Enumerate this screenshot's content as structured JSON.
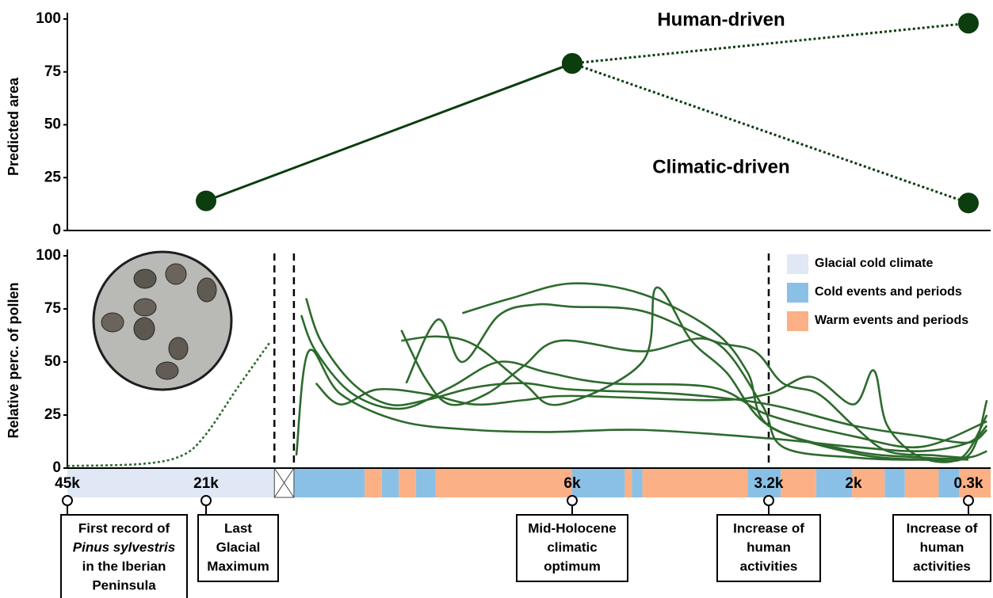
{
  "chart_data": [
    {
      "type": "line",
      "ylabel": "Predicted area",
      "ylim": [
        0,
        100
      ],
      "yticks": [
        0,
        25,
        50,
        75,
        100
      ],
      "series": [
        {
          "color": "#0b3d0e",
          "style": "solid",
          "x": [
            21,
            6
          ],
          "values": [
            14,
            79
          ]
        },
        {
          "name": "Human-driven",
          "color": "#0b3d0e",
          "style": "dotted",
          "x": [
            6,
            0.3
          ],
          "values": [
            79,
            98
          ]
        },
        {
          "name": "Climatic-driven",
          "color": "#0b3d0e",
          "style": "dotted",
          "x": [
            6,
            0.3
          ],
          "values": [
            79,
            13
          ]
        }
      ]
    },
    {
      "type": "line",
      "ylabel": "Relative perc. of pollen",
      "ylim": [
        0,
        100
      ],
      "yticks": [
        0,
        25,
        50,
        75,
        100
      ],
      "xlim": [
        45,
        0
      ],
      "xticks": [
        {
          "value": 45,
          "label": "45k"
        },
        {
          "value": 21,
          "label": "21k"
        },
        {
          "value": 6,
          "label": "6k"
        },
        {
          "value": 3.2,
          "label": "3.2k"
        },
        {
          "value": 2,
          "label": "2k"
        },
        {
          "value": 0.3,
          "label": "0.3k"
        }
      ],
      "vlines": [
        18.2,
        17.4,
        3.2
      ],
      "bands": [
        {
          "name": "Glacial cold climate",
          "color": "#dfe8f4",
          "spans": [
            [
              45,
              18.2
            ]
          ]
        },
        {
          "name": "Cold events and periods",
          "color": "#8ac0e6",
          "spans": [
            [
              17.4,
              14.5
            ],
            [
              13.8,
              13.1
            ],
            [
              12.4,
              11.6
            ],
            [
              6,
              5.25
            ],
            [
              5.15,
              5.0
            ],
            [
              3.5,
              3.03
            ],
            [
              2.53,
              2.02
            ],
            [
              1.54,
              1.24
            ],
            [
              0.74,
              0.44
            ]
          ]
        },
        {
          "name": "Warm events and periods",
          "color": "#fbb085",
          "spans": [
            [
              14.5,
              13.8
            ],
            [
              13.1,
              12.4
            ],
            [
              11.6,
              6
            ],
            [
              5.25,
              5.15
            ],
            [
              5.0,
              3.5
            ],
            [
              3.03,
              2.53
            ],
            [
              2.02,
              1.54
            ],
            [
              1.24,
              0.74
            ],
            [
              0.44,
              0
            ]
          ]
        }
      ],
      "series": [
        {
          "color": "#2d6a2d",
          "style": "dotted",
          "x": [
            45,
            32,
            25.1,
            21,
            19.7,
            18.4
          ],
          "values": [
            1,
            2,
            6,
            16,
            38,
            59
          ]
        },
        {
          "color": "#2d6a2d",
          "style": "solid",
          "x": [
            17.3,
            16.8,
            15.5,
            13,
            10,
            7,
            5,
            3.2,
            2,
            1,
            0.3,
            0.05
          ],
          "values": [
            6,
            55,
            35,
            22,
            18,
            17,
            18,
            14,
            10,
            8,
            12,
            20
          ]
        },
        {
          "color": "#2d6a2d",
          "style": "solid",
          "x": [
            16.9,
            16.3,
            15,
            13.5,
            12,
            10,
            8,
            6,
            4.5,
            3.2,
            2,
            1,
            0.3,
            0.05
          ],
          "values": [
            80,
            60,
            40,
            30,
            32,
            38,
            40,
            37,
            35,
            30,
            20,
            15,
            12,
            18
          ]
        },
        {
          "color": "#2d6a2d",
          "style": "solid",
          "x": [
            17.1,
            16.5,
            15,
            13,
            11,
            9,
            7,
            5.5,
            4,
            3.2,
            2,
            1,
            0.05
          ],
          "values": [
            72,
            55,
            35,
            28,
            38,
            50,
            45,
            40,
            38,
            25,
            15,
            10,
            22
          ]
        },
        {
          "color": "#2d6a2d",
          "style": "solid",
          "x": [
            10.5,
            8.5,
            6,
            5,
            4,
            3.5,
            3.2,
            2,
            1,
            0.3
          ],
          "values": [
            73,
            80,
            87,
            82,
            65,
            45,
            20,
            8,
            5,
            4
          ]
        },
        {
          "color": "#2d6a2d",
          "style": "solid",
          "x": [
            13,
            11.5,
            10,
            8,
            6.5,
            5,
            4.8,
            4.3,
            3.8,
            3.2,
            2,
            1,
            0.3
          ],
          "values": [
            60,
            62,
            58,
            40,
            30,
            50,
            85,
            60,
            45,
            20,
            7,
            4,
            5
          ]
        },
        {
          "color": "#2d6a2d",
          "style": "solid",
          "x": [
            12.8,
            11.5,
            10.5,
            9,
            7.5,
            6,
            5,
            4,
            3.4,
            3,
            2.5,
            2,
            1.5,
            0.8,
            0.3,
            0.05
          ],
          "values": [
            40,
            70,
            50,
            72,
            77,
            76,
            74,
            60,
            55,
            40,
            35,
            20,
            8,
            6,
            5,
            8
          ]
        },
        {
          "color": "#2d6a2d",
          "style": "solid",
          "x": [
            16.5,
            15.5,
            14,
            12,
            10,
            8,
            6,
            4,
            3.2,
            2.6,
            2,
            1.7,
            1.5,
            1,
            0.4,
            0.05
          ],
          "values": [
            40,
            30,
            37,
            35,
            30,
            32,
            34,
            32,
            35,
            43,
            30,
            46,
            20,
            5,
            5,
            25
          ]
        },
        {
          "color": "#2d6a2d",
          "style": "solid",
          "x": [
            13,
            12,
            11,
            9.5,
            8,
            6.5,
            5,
            4,
            3.3,
            3,
            2,
            1,
            0.3,
            0.05
          ],
          "values": [
            65,
            42,
            30,
            35,
            48,
            60,
            55,
            60,
            30,
            10,
            5,
            4,
            6,
            32
          ]
        }
      ],
      "events": [
        {
          "x": 45,
          "lines": [
            "First record of",
            "Pinus sylvestris",
            "in the Iberian",
            "Peninsula"
          ],
          "italic_line": 1
        },
        {
          "x": 21,
          "lines": [
            "Last",
            "Glacial",
            "Maximum"
          ]
        },
        {
          "x": 6,
          "lines": [
            "Mid-Holocene",
            "climatic",
            "optimum"
          ]
        },
        {
          "x": 3.2,
          "lines": [
            "Increase of",
            "human",
            "activities"
          ]
        },
        {
          "x": 0.3,
          "lines": [
            "Increase of",
            "human",
            "activities"
          ]
        }
      ]
    }
  ]
}
